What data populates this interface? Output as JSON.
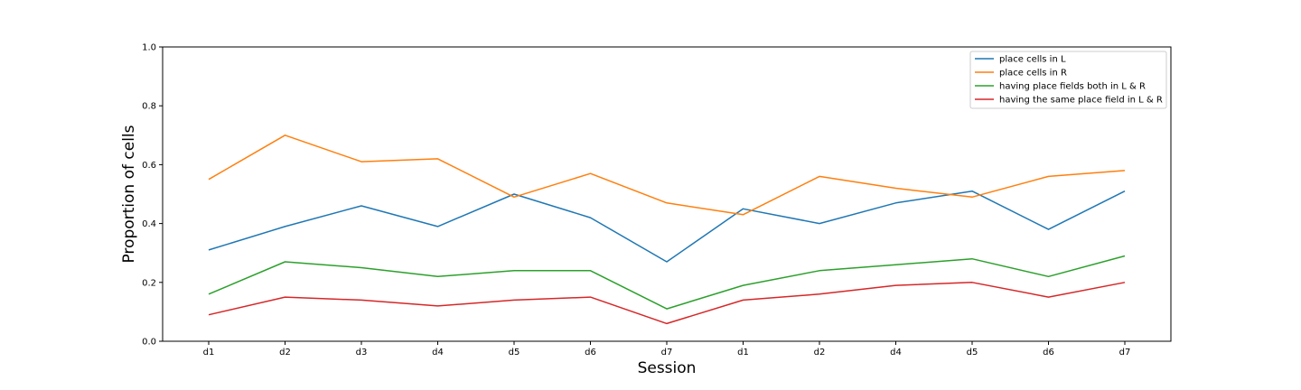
{
  "chart_data": {
    "type": "line",
    "categories": [
      "d1",
      "d2",
      "d3",
      "d4",
      "d5",
      "d6",
      "d7",
      "d1",
      "d2",
      "d4",
      "d5",
      "d6",
      "d7"
    ],
    "series": [
      {
        "name": "place cells in L",
        "color": "#1f77b4",
        "values": [
          0.31,
          0.39,
          0.46,
          0.39,
          0.5,
          0.42,
          0.27,
          0.45,
          0.4,
          0.47,
          0.51,
          0.38,
          0.51
        ]
      },
      {
        "name": "place cells in R",
        "color": "#ff7f0e",
        "values": [
          0.55,
          0.7,
          0.61,
          0.62,
          0.49,
          0.57,
          0.47,
          0.43,
          0.56,
          0.52,
          0.49,
          0.56,
          0.58
        ]
      },
      {
        "name": "having place fields both in L & R",
        "color": "#2ca02c",
        "values": [
          0.16,
          0.27,
          0.25,
          0.22,
          0.24,
          0.24,
          0.11,
          0.19,
          0.24,
          0.26,
          0.28,
          0.22,
          0.29
        ]
      },
      {
        "name": "having the same place field in L & R",
        "color": "#d62728",
        "values": [
          0.09,
          0.15,
          0.14,
          0.12,
          0.14,
          0.15,
          0.06,
          0.14,
          0.16,
          0.19,
          0.2,
          0.15,
          0.2
        ]
      }
    ],
    "xlabel": "Session",
    "ylabel": "Proportion of cells",
    "ylim": [
      0.0,
      1.0
    ],
    "yticks": [
      "0.0",
      "0.2",
      "0.4",
      "0.6",
      "0.8",
      "1.0"
    ],
    "grid": false,
    "legend_position": "top-right"
  }
}
